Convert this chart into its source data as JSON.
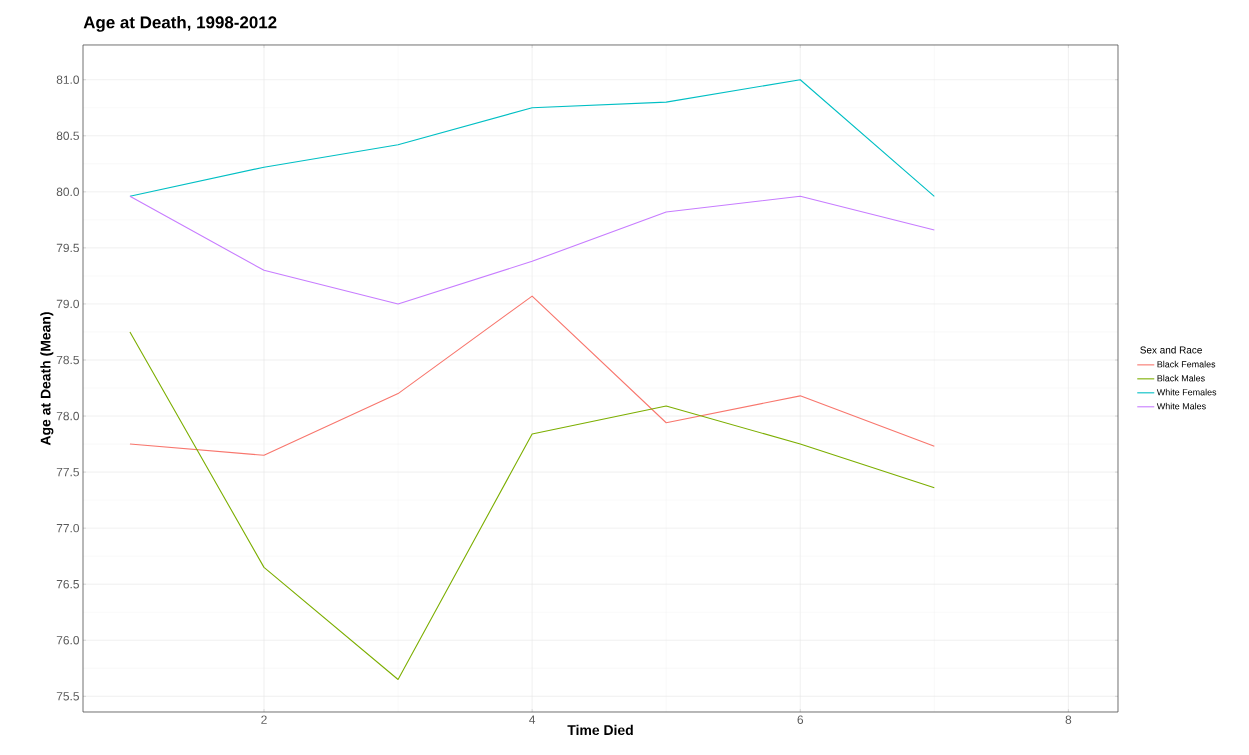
{
  "chart_data": {
    "type": "line",
    "title": "Age at Death, 1998-2012",
    "xlabel": "Time Died",
    "ylabel": "Age at Death (Mean)",
    "legend_title": "Sex and Race",
    "x": [
      1,
      2,
      3,
      4,
      5,
      6,
      7
    ],
    "series": [
      {
        "name": "Black Females",
        "color": "#f8766d",
        "values": [
          77.75,
          77.65,
          78.2,
          79.07,
          77.94,
          78.18,
          77.73
        ]
      },
      {
        "name": "Black Males",
        "color": "#7cae00",
        "values": [
          78.75,
          76.65,
          75.65,
          77.84,
          78.09,
          77.75,
          77.36
        ]
      },
      {
        "name": "White Females",
        "color": "#00bfc4",
        "values": [
          79.96,
          80.22,
          80.42,
          80.75,
          80.8,
          81.0,
          79.96
        ]
      },
      {
        "name": "White Males",
        "color": "#c77cff",
        "values": [
          79.96,
          79.3,
          79.0,
          79.38,
          79.82,
          79.96,
          79.66
        ]
      }
    ],
    "xlim": [
      0.65,
      8.37
    ],
    "ylim": [
      75.36,
      81.31
    ],
    "xticks": [
      2,
      4,
      6,
      8
    ],
    "yticks": [
      {
        "value": 75.5,
        "label": "75.5"
      },
      {
        "value": 76,
        "label": "76.0"
      },
      {
        "value": 76.5,
        "label": "76.5"
      },
      {
        "value": 77,
        "label": "77.0"
      },
      {
        "value": 77.5,
        "label": "77.5"
      },
      {
        "value": 78,
        "label": "78.0"
      },
      {
        "value": 78.5,
        "label": "78.5"
      },
      {
        "value": 79,
        "label": "79.0"
      },
      {
        "value": 79.5,
        "label": "79.5"
      },
      {
        "value": 80,
        "label": "80.0"
      },
      {
        "value": 80.5,
        "label": "80.5"
      },
      {
        "value": 81,
        "label": "81.0"
      }
    ],
    "grid": true,
    "legend": "right",
    "marker": "none",
    "line_style": "solid"
  }
}
